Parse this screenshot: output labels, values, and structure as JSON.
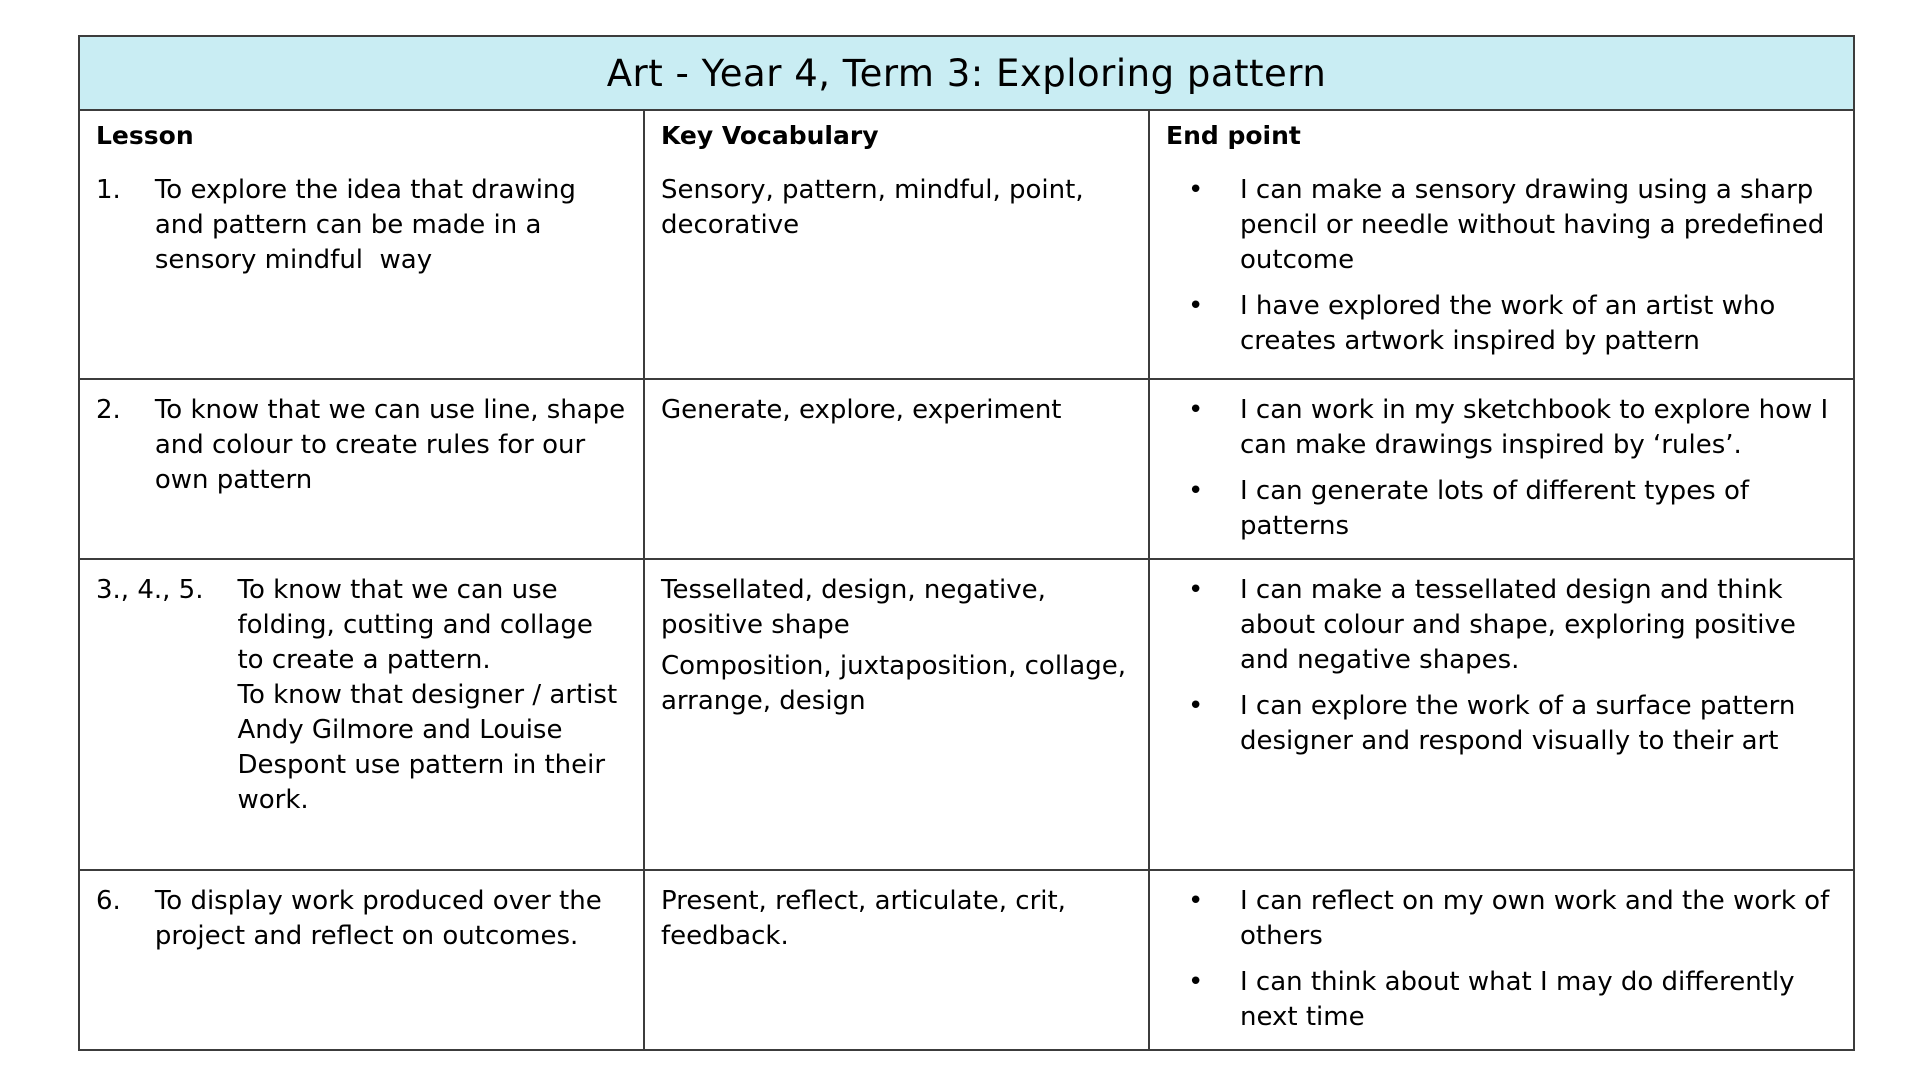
{
  "title": "Art - Year 4, Term 3: Exploring pattern",
  "columns": {
    "lesson": "Lesson",
    "vocab": "Key Vocabulary",
    "endpoint": "End point"
  },
  "rows": [
    {
      "num": "1.",
      "lesson": [
        "To explore the idea that drawing and pattern can be made in a sensory mindful  way"
      ],
      "vocab": [
        "Sensory, pattern, mindful, point, decorative"
      ],
      "endpoints": [
        "I can make a sensory drawing using a sharp pencil or needle without having a predefined outcome",
        "I have explored the work of an artist who creates artwork inspired by pattern"
      ]
    },
    {
      "num": "2.",
      "lesson": [
        "To know that we can use line, shape and colour to create rules for our own pattern"
      ],
      "vocab": [
        "Generate, explore, experiment"
      ],
      "endpoints": [
        "I can work in my sketchbook to explore how I can make drawings inspired by ‘rules’.",
        "I can generate lots of different types of patterns"
      ]
    },
    {
      "num": "3., 4., 5.",
      "lesson": [
        "To know that we can use folding, cutting and collage to create a pattern.",
        "To know that designer / artist Andy Gilmore and Louise Despont use pattern in their work."
      ],
      "vocab": [
        "Tessellated, design, negative, positive shape",
        "Composition, juxtaposition, collage, arrange, design"
      ],
      "endpoints": [
        "I can make a tessellated design and think about colour and shape, exploring positive and negative shapes.",
        "I can explore the work of a surface pattern designer and respond visually to their art"
      ]
    },
    {
      "num": "6.",
      "lesson": [
        "To display work produced over the project and reflect on outcomes."
      ],
      "vocab": [
        "Present, reflect, articulate, crit, feedback."
      ],
      "endpoints": [
        "I can reflect on my own work and the work of others",
        "I can think about what I may do differently next time"
      ]
    }
  ],
  "colors": {
    "title_bg": "#c9edf3",
    "border": "#3c3c3c",
    "text": "#000000"
  },
  "bullet_glyph": "•"
}
